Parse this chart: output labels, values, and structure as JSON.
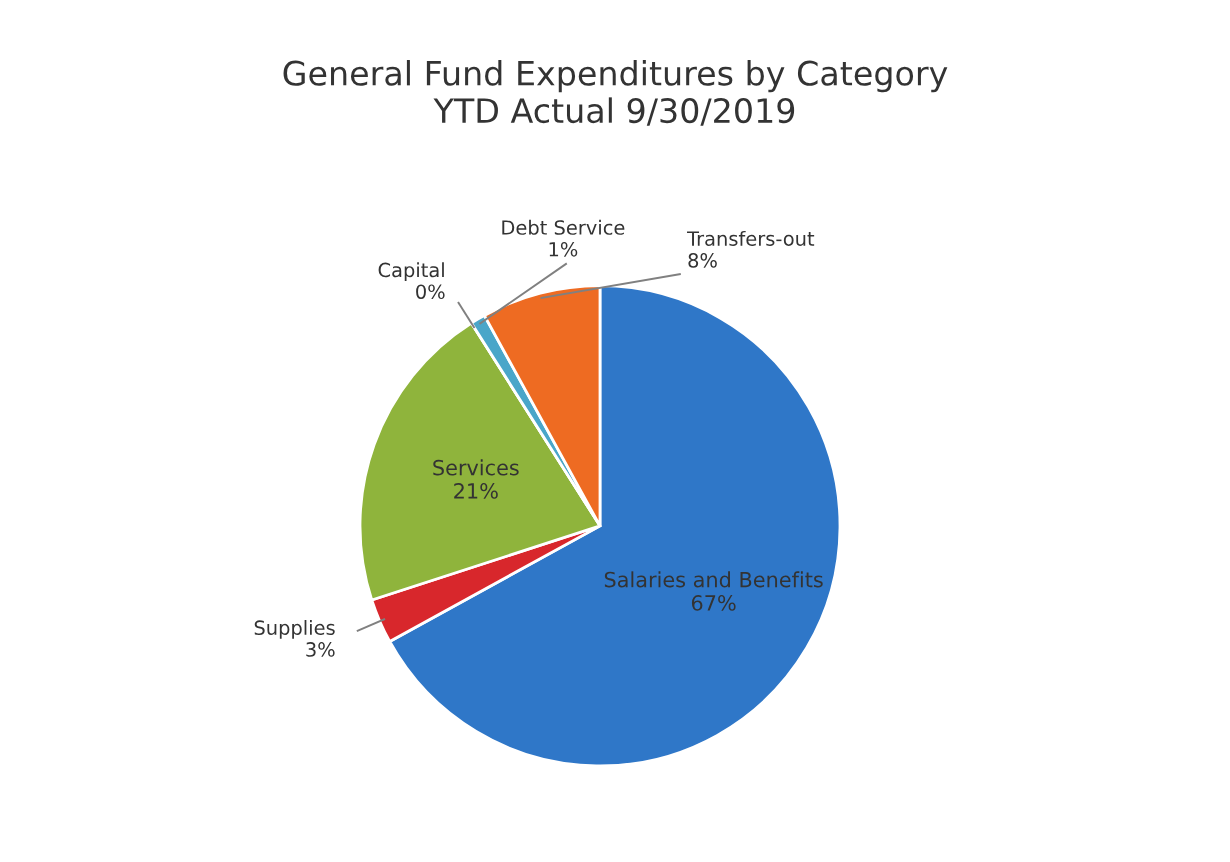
{
  "chart_data": {
    "type": "pie",
    "title": "General Fund Expenditures by Category\nYTD Actual 9/30/2019",
    "categories": [
      "Salaries and Benefits",
      "Supplies",
      "Services",
      "Capital",
      "Debt Service",
      "Transfers-out"
    ],
    "values": [
      67,
      3,
      21,
      0,
      1,
      8
    ],
    "value_labels": [
      "67%",
      "3%",
      "21%",
      "0%",
      "1%",
      "8%"
    ],
    "colors": [
      "#2f77c8",
      "#d8272c",
      "#8fb43c",
      "#a0a0a0",
      "#4aa6c9",
      "#ee6b22"
    ],
    "legend": false
  }
}
